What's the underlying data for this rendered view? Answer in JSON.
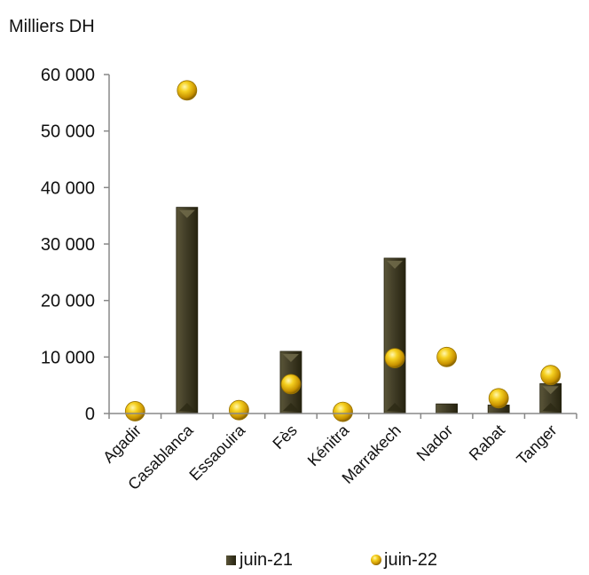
{
  "chart_data": {
    "type": "bar",
    "ylabel": "Milliers DH",
    "categories": [
      "Agadir",
      "Casablanca",
      "Essaouira",
      "Fès",
      "Kénitra",
      "Marrakech",
      "Nador",
      "Rabat",
      "Tanger"
    ],
    "y_ticks": [
      "0",
      "10 000",
      "20 000",
      "30 000",
      "40 000",
      "50 000",
      "60 000"
    ],
    "ylim": [
      0,
      60000
    ],
    "series": [
      {
        "name": "juin-21",
        "mark": "bar",
        "color": "#3f3b25",
        "values": [
          0,
          36500,
          0,
          11000,
          0,
          27500,
          1700,
          1500,
          5300
        ]
      },
      {
        "name": "juin-22",
        "mark": "point",
        "color": "#e8b400",
        "values": [
          400,
          57200,
          600,
          5200,
          300,
          9800,
          10000,
          2700,
          6800
        ]
      }
    ],
    "legend_position": "bottom",
    "grid": false
  }
}
